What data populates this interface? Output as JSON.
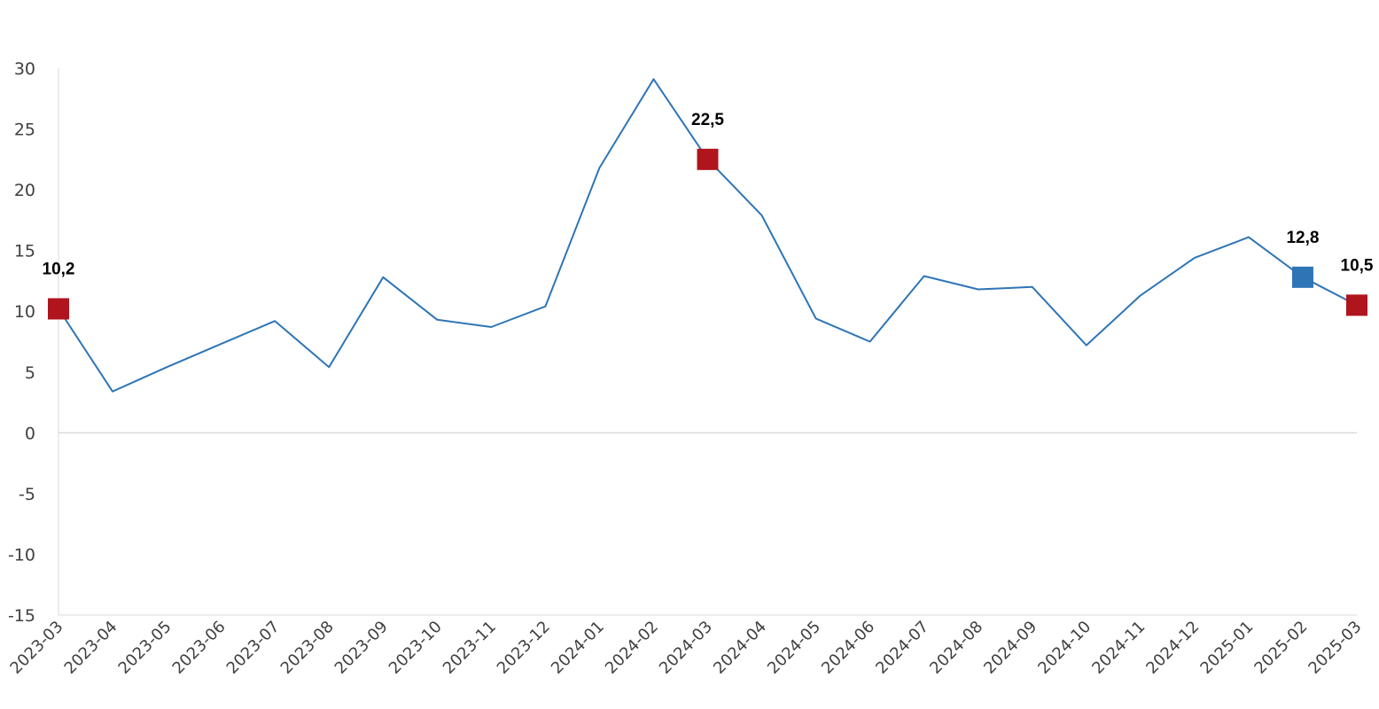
{
  "chart_data": {
    "type": "line",
    "title": "",
    "xlabel": "",
    "ylabel": "",
    "ylim": [
      -15,
      30
    ],
    "yticks": [
      -15,
      -10,
      -5,
      0,
      5,
      10,
      15,
      20,
      25,
      30
    ],
    "grid": false,
    "legend": "none",
    "line_color": "#2E75B6",
    "categories": [
      "2023-03",
      "2023-04",
      "2023-05",
      "2023-06",
      "2023-07",
      "2023-08",
      "2023-09",
      "2023-10",
      "2023-11",
      "2023-12",
      "2024-01",
      "2024-02",
      "2024-03",
      "2024-04",
      "2024-05",
      "2024-06",
      "2024-07",
      "2024-08",
      "2024-09",
      "2024-10",
      "2024-11",
      "2024-12",
      "2025-01",
      "2025-02",
      "2025-03"
    ],
    "series": [
      {
        "values": [
          10.2,
          3.4,
          5.4,
          7.3,
          9.2,
          5.4,
          12.8,
          9.3,
          8.7,
          10.4,
          21.8,
          29.1,
          22.5,
          17.9,
          9.4,
          7.5,
          12.9,
          11.8,
          12.0,
          7.2,
          11.3,
          14.4,
          16.1,
          12.8,
          10.5
        ]
      }
    ],
    "markers": [
      {
        "category": "2023-03",
        "value": 10.2,
        "label": "10,2",
        "color": "#B0141C"
      },
      {
        "category": "2024-03",
        "value": 22.5,
        "label": "22,5",
        "color": "#B0141C"
      },
      {
        "category": "2025-02",
        "value": 12.8,
        "label": "12,8",
        "color": "#2E75B6"
      },
      {
        "category": "2025-03",
        "value": 10.5,
        "label": "10,5",
        "color": "#B0141C"
      }
    ]
  }
}
